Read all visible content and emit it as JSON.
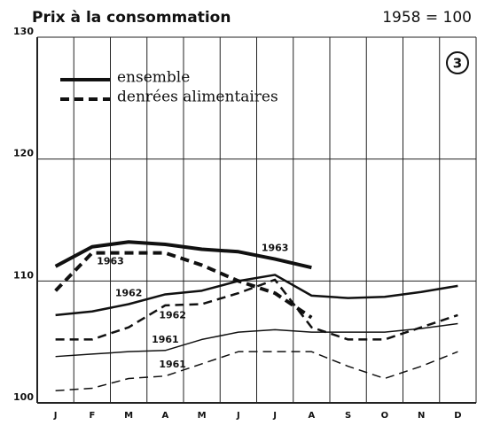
{
  "chart_data": {
    "type": "line",
    "title": "Prix à la consommation",
    "subtitle": "1958 = 100",
    "badge": "3",
    "categories": [
      "J",
      "F",
      "M",
      "A",
      "M",
      "J",
      "J",
      "A",
      "S",
      "O",
      "N",
      "D"
    ],
    "ylim": [
      100,
      130
    ],
    "yticks": [
      100,
      110,
      120,
      130
    ],
    "grid": true,
    "legend": [
      {
        "label": "ensemble",
        "dash": false
      },
      {
        "label": "denrées alimentaires",
        "dash": true
      }
    ],
    "series": [
      {
        "name": "1963",
        "dash": false,
        "line_width": 4,
        "color": "#111",
        "values": [
          111.2,
          112.8,
          113.2,
          113,
          112.6,
          112.4,
          111.8,
          111.1,
          null,
          null,
          null,
          null
        ]
      },
      {
        "name": "1963",
        "dash": true,
        "line_width": 4,
        "color": "#111",
        "values": [
          109.2,
          112.3,
          112.3,
          112.3,
          111.3,
          110,
          109,
          107,
          null,
          null,
          null,
          null
        ]
      },
      {
        "name": "1962",
        "dash": false,
        "line_width": 2.5,
        "color": "#111",
        "values": [
          107.2,
          107.5,
          108.1,
          108.9,
          109.2,
          110,
          110.5,
          108.8,
          108.6,
          108.7,
          109.1,
          109.6
        ]
      },
      {
        "name": "1962",
        "dash": true,
        "line_width": 2.5,
        "color": "#111",
        "values": [
          105.2,
          105.2,
          106.2,
          108,
          108.1,
          109,
          110.1,
          106.2,
          105.2,
          105.2,
          106.2,
          107.2
        ]
      },
      {
        "name": "1961",
        "dash": false,
        "line_width": 1.5,
        "color": "#111",
        "values": [
          103.8,
          104,
          104.2,
          104.3,
          105.2,
          105.8,
          106,
          105.8,
          105.8,
          105.8,
          106.1,
          106.5
        ]
      },
      {
        "name": "1961",
        "dash": true,
        "line_width": 1.5,
        "color": "#111",
        "values": [
          101,
          101.2,
          102,
          102.2,
          103.2,
          104.2,
          104.2,
          104.2,
          103,
          102,
          103,
          104.2
        ]
      }
    ]
  }
}
